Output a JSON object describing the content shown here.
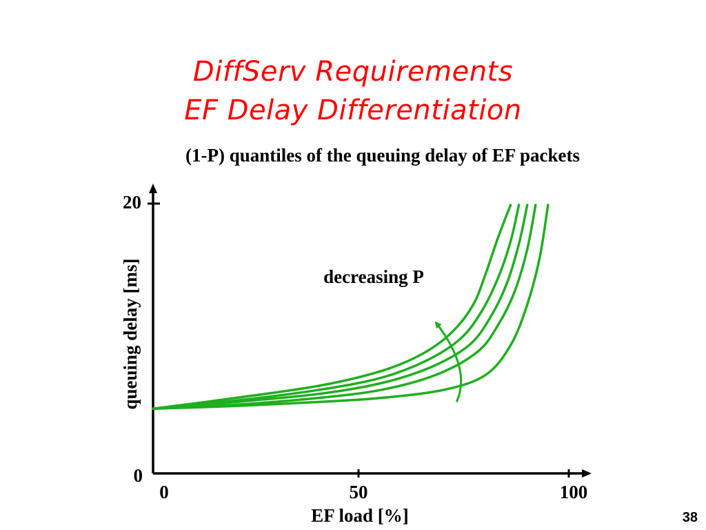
{
  "slide": {
    "title_line_1": "DiffServ Requirements",
    "title_line_2": "EF Delay Differentiation",
    "number": "38"
  },
  "colors": {
    "title": "#ff0000",
    "curves": "#1fae1f",
    "axis": "#000000"
  },
  "chart_data": {
    "type": "line",
    "title": "(1-P) quantiles of the queuing delay of EF packets",
    "xlabel": "EF load [%]",
    "ylabel": "queuing delay [ms]",
    "xlim": [
      0,
      100
    ],
    "ylim": [
      0,
      20
    ],
    "x_ticks": [
      "0",
      "50",
      "100"
    ],
    "y_ticks": [
      "0",
      "20"
    ],
    "grid": false,
    "annotation": {
      "text": "decreasing P",
      "arrow_from": [
        73,
        5.3
      ],
      "arrow_to": [
        68,
        11.2
      ]
    },
    "series": [
      {
        "x": [
          0,
          20,
          40,
          55,
          65,
          72,
          77,
          80,
          83,
          86
        ],
        "y": [
          4.8,
          5.6,
          6.5,
          7.6,
          8.9,
          10.5,
          12.5,
          14.8,
          17.5,
          19.9
        ]
      },
      {
        "x": [
          0,
          20,
          40,
          55,
          66,
          74,
          79,
          83,
          86,
          88
        ],
        "y": [
          4.8,
          5.4,
          6.2,
          7.1,
          8.4,
          10.0,
          12.0,
          14.5,
          17.2,
          19.9
        ]
      },
      {
        "x": [
          0,
          20,
          40,
          55,
          67,
          76,
          81,
          85,
          88,
          90
        ],
        "y": [
          4.8,
          5.3,
          5.9,
          6.7,
          7.9,
          9.5,
          11.5,
          14.0,
          17.0,
          19.9
        ]
      },
      {
        "x": [
          0,
          20,
          40,
          55,
          68,
          78,
          83,
          87,
          90,
          92
        ],
        "y": [
          4.8,
          5.1,
          5.6,
          6.2,
          7.3,
          9.0,
          11.0,
          13.5,
          16.6,
          19.9
        ]
      },
      {
        "x": [
          0,
          20,
          40,
          55,
          70,
          80,
          86,
          90,
          93,
          95
        ],
        "y": [
          4.8,
          5.0,
          5.3,
          5.6,
          6.2,
          7.3,
          9.5,
          12.5,
          16.0,
          19.9
        ]
      }
    ]
  }
}
